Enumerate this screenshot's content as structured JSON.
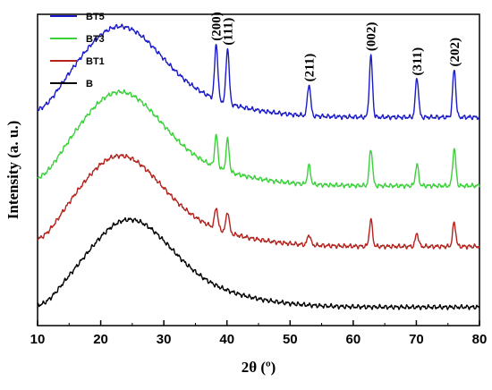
{
  "chart_data": {
    "type": "line",
    "title": "",
    "xlabel": "2θ (º)",
    "ylabel": "Intensity (a. u.)",
    "xlim": [
      10,
      80
    ],
    "x_ticks": [
      "10",
      "20",
      "30",
      "40",
      "50",
      "60",
      "70",
      "80"
    ],
    "y_ticks_labeled": false,
    "legend_placement": "top-left",
    "legend": [
      "BT5",
      "BT3",
      "BT1",
      "B"
    ],
    "series": [
      {
        "name": "BT5",
        "color": "#1a1ac8",
        "baseline": 3.6,
        "hump": {
          "amp": 1.45,
          "center": 22.5,
          "width": 6.5
        },
        "peaks": [
          {
            "x": 38.3,
            "height": 1.05
          },
          {
            "x": 40.1,
            "height": 1.05
          },
          {
            "x": 53.0,
            "height": 0.6
          },
          {
            "x": 62.8,
            "height": 1.15
          },
          {
            "x": 70.1,
            "height": 0.75
          },
          {
            "x": 76.0,
            "height": 0.9
          }
        ]
      },
      {
        "name": "BT3",
        "color": "#3ad13a",
        "baseline": 2.3,
        "hump": {
          "amp": 1.5,
          "center": 22.5,
          "width": 6.5
        },
        "peaks": [
          {
            "x": 38.3,
            "height": 0.6
          },
          {
            "x": 40.1,
            "height": 0.6
          },
          {
            "x": 53.0,
            "height": 0.35
          },
          {
            "x": 62.8,
            "height": 0.7
          },
          {
            "x": 70.1,
            "height": 0.4
          },
          {
            "x": 76.0,
            "height": 0.7
          }
        ]
      },
      {
        "name": "BT1",
        "color": "#b5221c",
        "baseline": 1.15,
        "hump": {
          "amp": 1.45,
          "center": 22.5,
          "width": 6.5
        },
        "peaks": [
          {
            "x": 38.3,
            "height": 0.4
          },
          {
            "x": 40.1,
            "height": 0.4
          },
          {
            "x": 53.0,
            "height": 0.2
          },
          {
            "x": 62.8,
            "height": 0.5
          },
          {
            "x": 70.1,
            "height": 0.25
          },
          {
            "x": 76.0,
            "height": 0.45
          }
        ]
      },
      {
        "name": "B",
        "color": "#000000",
        "baseline": 0.0,
        "hump": {
          "amp": 1.4,
          "center": 24.0,
          "width": 6.5
        },
        "peaks": []
      }
    ],
    "annotations": [
      {
        "text": "(200)",
        "x": 38.3
      },
      {
        "text": "(111)",
        "x": 40.1
      },
      {
        "text": "(211)",
        "x": 53.0
      },
      {
        "text": "(002)",
        "x": 62.8
      },
      {
        "text": "(311)",
        "x": 70.1
      },
      {
        "text": "(202)",
        "x": 76.0
      }
    ]
  }
}
